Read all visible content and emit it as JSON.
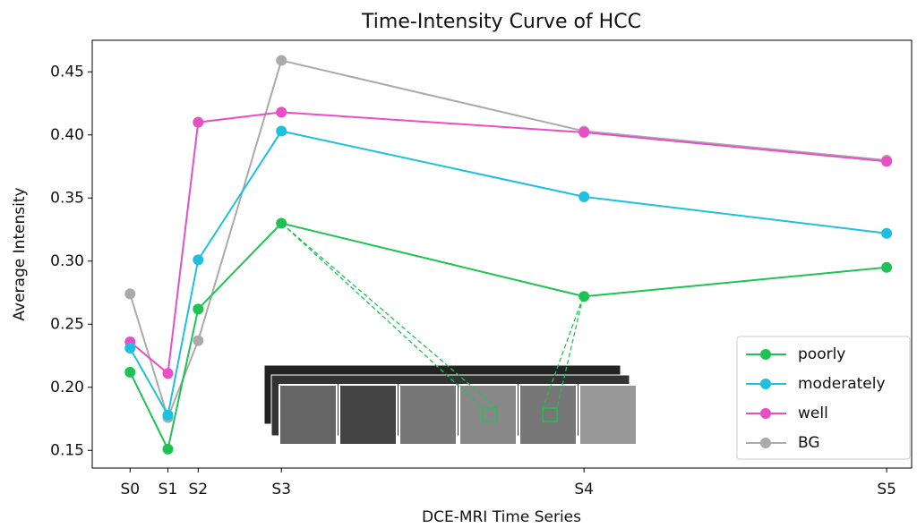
{
  "chart_data": {
    "type": "line",
    "title": "Time-Intensity Curve of HCC",
    "x_label": "DCE-MRI Time Series",
    "y_label": "Average Intensity",
    "x": [
      0,
      0.5,
      0.9,
      2,
      6,
      10
    ],
    "xlim": [
      -0.5,
      10.33
    ],
    "xticks": [
      {
        "value": 0,
        "label": "S0"
      },
      {
        "value": 0.5,
        "label": "S1"
      },
      {
        "value": 0.9,
        "label": "S2"
      },
      {
        "value": 2,
        "label": "S3"
      },
      {
        "value": 6,
        "label": "S4"
      },
      {
        "value": 10,
        "label": "S5"
      }
    ],
    "ylim": [
      0.136,
      0.475
    ],
    "yticks": [
      0.15,
      {
        "value": 0.2,
        "label": "0.20"
      },
      0.25,
      {
        "value": 0.3,
        "label": "0.30"
      },
      0.35,
      {
        "value": 0.4,
        "label": "0.40"
      },
      0.45
    ],
    "legend": "lower right",
    "series": [
      {
        "name": "poorly",
        "color": "#1fc254",
        "values": [
          0.212,
          0.151,
          0.262,
          0.33,
          0.272,
          0.295
        ]
      },
      {
        "name": "moderately",
        "color": "#1ec0e0",
        "values": [
          0.231,
          0.178,
          0.301,
          0.403,
          0.351,
          0.322
        ]
      },
      {
        "name": "well",
        "color": "#e84fc6",
        "values": [
          0.236,
          0.211,
          0.41,
          0.418,
          0.402,
          0.379
        ]
      },
      {
        "name": "BG",
        "color": "#aaaaaa",
        "values": [
          0.274,
          0.176,
          0.237,
          0.459,
          0.403,
          0.38
        ]
      }
    ]
  }
}
